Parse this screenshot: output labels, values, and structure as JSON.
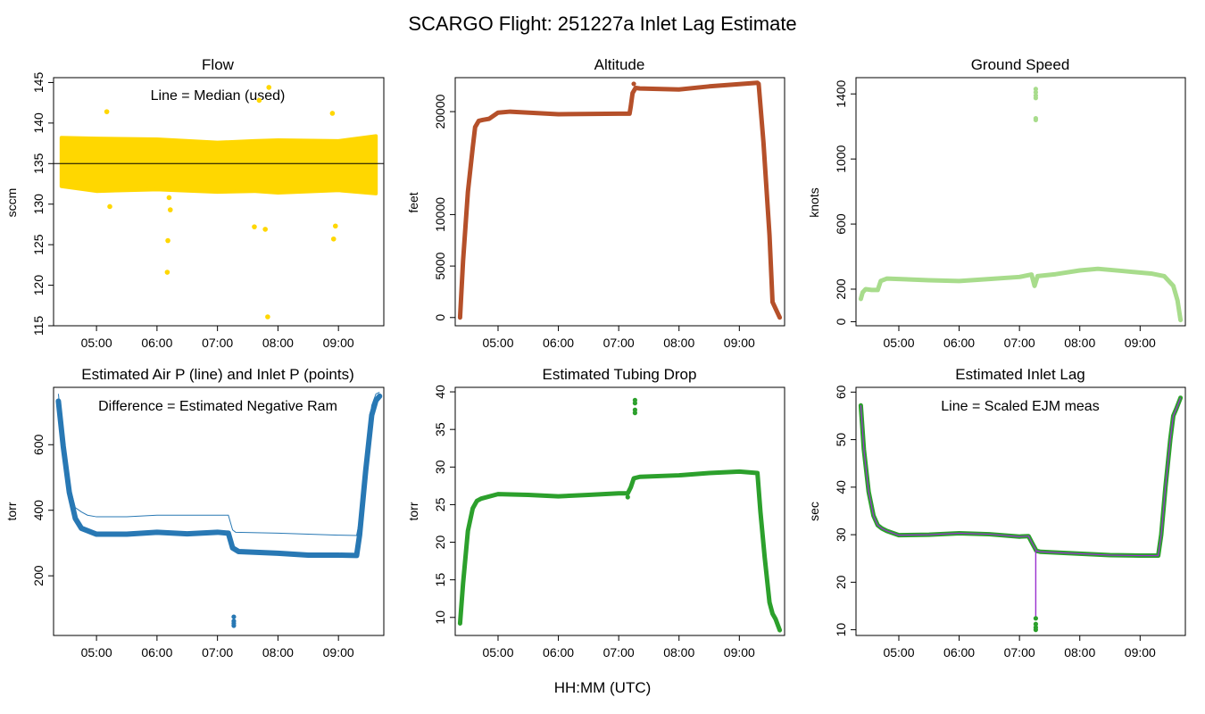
{
  "figure": {
    "title": "SCARGO Flight: 251227a  Inlet Lag Estimate",
    "xlabel": "HH:MM (UTC)"
  },
  "chart_data": [
    {
      "id": "flow",
      "type": "scatter",
      "title": "Flow",
      "ylabel": "sccm",
      "annotation": "Line = Median (used)",
      "color": "#FFD700",
      "xlim": [
        4.29,
        9.75
      ],
      "ylim": [
        115,
        145.6
      ],
      "yticks": [
        115,
        120,
        125,
        130,
        135,
        140,
        145
      ],
      "xticks": [
        5,
        6,
        7,
        8,
        9
      ],
      "xtick_labels": [
        "05:00",
        "06:00",
        "07:00",
        "08:00",
        "09:00"
      ],
      "band": {
        "x": [
          4.42,
          5.0,
          6.0,
          7.0,
          7.6,
          8.0,
          9.0,
          9.62
        ],
        "lower": [
          132.2,
          131.6,
          131.8,
          131.5,
          131.6,
          131.4,
          131.7,
          131.3
        ],
        "upper": [
          138.2,
          138.1,
          138.0,
          137.6,
          137.8,
          137.9,
          137.8,
          138.4
        ]
      },
      "hline": {
        "y": 135.0,
        "color": "#000000"
      },
      "outliers": [
        [
          5.17,
          141.4
        ],
        [
          6.2,
          130.8
        ],
        [
          6.22,
          129.3
        ],
        [
          6.18,
          125.5
        ],
        [
          6.17,
          121.6
        ],
        [
          7.69,
          142.8
        ],
        [
          7.85,
          144.4
        ],
        [
          7.83,
          116.1
        ],
        [
          7.61,
          127.2
        ],
        [
          7.79,
          126.9
        ],
        [
          8.9,
          141.2
        ],
        [
          8.95,
          127.3
        ],
        [
          8.92,
          125.7
        ],
        [
          5.22,
          129.7
        ]
      ]
    },
    {
      "id": "altitude",
      "type": "line",
      "title": "Altitude",
      "ylabel": "feet",
      "color": "#B5502A",
      "xlim": [
        4.29,
        9.75
      ],
      "ylim": [
        -800,
        23300
      ],
      "yticks": [
        0,
        5000,
        10000,
        20000
      ],
      "xticks": [
        5,
        6,
        7,
        8,
        9
      ],
      "xtick_labels": [
        "05:00",
        "06:00",
        "07:00",
        "08:00",
        "09:00"
      ],
      "x": [
        4.37,
        4.42,
        4.5,
        4.58,
        4.62,
        4.68,
        4.75,
        4.85,
        5.0,
        5.2,
        6.0,
        7.0,
        7.18,
        7.2,
        7.23,
        7.28,
        7.35,
        8.0,
        8.5,
        9.3,
        9.32,
        9.4,
        9.5,
        9.55,
        9.63,
        9.67
      ],
      "values": [
        0,
        5500,
        12200,
        16500,
        18500,
        19100,
        19200,
        19300,
        19900,
        20000,
        19750,
        19800,
        19800,
        20500,
        21800,
        22300,
        22250,
        22150,
        22450,
        22800,
        22700,
        17000,
        8000,
        1500,
        500,
        0
      ],
      "points": [
        [
          7.25,
          22700
        ]
      ]
    },
    {
      "id": "groundspeed",
      "type": "line",
      "title": "Ground Speed",
      "ylabel": "knots",
      "color": "#A8DC8C",
      "xlim": [
        4.29,
        9.75
      ],
      "ylim": [
        -25,
        1500
      ],
      "yticks": [
        0,
        200,
        600,
        1000,
        1400
      ],
      "xticks": [
        5,
        6,
        7,
        8,
        9
      ],
      "xtick_labels": [
        "05:00",
        "06:00",
        "07:00",
        "08:00",
        "09:00"
      ],
      "x": [
        4.37,
        4.4,
        4.45,
        4.55,
        4.65,
        4.7,
        4.8,
        5.0,
        5.5,
        6.0,
        6.5,
        7.0,
        7.2,
        7.25,
        7.3,
        7.6,
        8.0,
        8.3,
        8.7,
        9.2,
        9.4,
        9.55,
        9.62,
        9.67
      ],
      "values": [
        140,
        180,
        200,
        195,
        195,
        250,
        265,
        262,
        255,
        250,
        262,
        275,
        290,
        220,
        280,
        292,
        315,
        325,
        312,
        295,
        280,
        220,
        130,
        10
      ],
      "points": [
        [
          7.27,
          1430
        ],
        [
          7.27,
          1410
        ],
        [
          7.27,
          1390
        ],
        [
          7.27,
          1375
        ],
        [
          7.27,
          1250
        ],
        [
          7.27,
          1240
        ]
      ]
    },
    {
      "id": "pressure",
      "type": "line",
      "title": "Estimated Air P (line) and Inlet P (points)",
      "ylabel": "torr",
      "annotation": "Difference = Estimated Negative Ram",
      "color": "#2878B4",
      "xlim": [
        4.29,
        9.75
      ],
      "ylim": [
        18,
        775
      ],
      "yticks": [
        200,
        400,
        600
      ],
      "xticks": [
        5,
        6,
        7,
        8,
        9
      ],
      "xtick_labels": [
        "05:00",
        "06:00",
        "07:00",
        "08:00",
        "09:00"
      ],
      "series": [
        {
          "name": "Inlet P (points)",
          "x": [
            4.37,
            4.45,
            4.55,
            4.65,
            4.75,
            5.0,
            5.5,
            6.0,
            6.5,
            7.0,
            7.18,
            7.25,
            7.35,
            8.0,
            8.5,
            9.0,
            9.3,
            9.35,
            9.45,
            9.55,
            9.62,
            9.68
          ],
          "values": [
            733,
            595,
            455,
            375,
            345,
            327,
            327,
            333,
            328,
            333,
            330,
            285,
            274,
            269,
            263,
            263,
            262,
            325,
            520,
            690,
            735,
            748
          ]
        },
        {
          "name": "Air P (line)",
          "x": [
            4.37,
            4.45,
            4.55,
            4.65,
            4.75,
            4.85,
            5.0,
            5.5,
            6.0,
            7.0,
            7.18,
            7.25,
            7.3,
            8.0,
            9.0,
            9.3,
            9.35,
            9.45,
            9.55,
            9.62,
            9.68
          ],
          "values": [
            755,
            610,
            480,
            408,
            395,
            385,
            380,
            380,
            385,
            385,
            385,
            340,
            333,
            330,
            324,
            323,
            370,
            560,
            720,
            755,
            760
          ]
        }
      ],
      "points": [
        [
          7.27,
          75
        ],
        [
          7.27,
          62
        ],
        [
          7.27,
          55
        ],
        [
          7.27,
          48
        ]
      ]
    },
    {
      "id": "tubing",
      "type": "line",
      "title": "Estimated Tubing Drop",
      "ylabel": "torr",
      "color": "#2CA02C",
      "xlim": [
        4.29,
        9.75
      ],
      "ylim": [
        7.6,
        40.6
      ],
      "yticks": [
        10,
        15,
        20,
        25,
        30,
        35,
        40
      ],
      "xticks": [
        5,
        6,
        7,
        8,
        9
      ],
      "xtick_labels": [
        "05:00",
        "06:00",
        "07:00",
        "08:00",
        "09:00"
      ],
      "x": [
        4.37,
        4.42,
        4.5,
        4.58,
        4.65,
        4.72,
        5.0,
        5.5,
        6.0,
        6.5,
        7.0,
        7.15,
        7.2,
        7.25,
        7.35,
        8.0,
        8.5,
        9.0,
        9.3,
        9.35,
        9.42,
        9.5,
        9.55,
        9.6,
        9.67
      ],
      "values": [
        9.2,
        14.5,
        21.5,
        24.5,
        25.5,
        25.8,
        26.4,
        26.3,
        26.1,
        26.3,
        26.5,
        26.5,
        27.3,
        28.5,
        28.7,
        28.9,
        29.2,
        29.4,
        29.2,
        24.0,
        18.0,
        12.0,
        10.5,
        9.8,
        8.3
      ],
      "points": [
        [
          7.27,
          38.9
        ],
        [
          7.27,
          38.5
        ],
        [
          7.27,
          37.6
        ],
        [
          7.27,
          37.2
        ],
        [
          7.15,
          26.0
        ]
      ]
    },
    {
      "id": "lag",
      "type": "line",
      "title": "Estimated Inlet Lag",
      "ylabel": "sec",
      "annotation": "Line = Scaled EJM meas",
      "color": "#2CA02C",
      "line_color": "#9B30D0",
      "xlim": [
        4.29,
        9.75
      ],
      "ylim": [
        8.8,
        61
      ],
      "yticks": [
        10,
        20,
        30,
        40,
        50,
        60
      ],
      "xticks": [
        5,
        6,
        7,
        8,
        9
      ],
      "xtick_labels": [
        "05:00",
        "06:00",
        "07:00",
        "08:00",
        "09:00"
      ],
      "x": [
        4.37,
        4.42,
        4.5,
        4.58,
        4.65,
        4.72,
        4.8,
        5.0,
        5.5,
        6.0,
        6.5,
        7.0,
        7.15,
        7.22,
        7.28,
        7.35,
        8.0,
        8.5,
        9.0,
        9.3,
        9.35,
        9.42,
        9.5,
        9.55,
        9.6,
        9.67
      ],
      "values": [
        57.2,
        48.0,
        39.0,
        34.0,
        32.0,
        31.3,
        30.8,
        29.9,
        30.0,
        30.3,
        30.1,
        29.6,
        29.7,
        28.0,
        26.6,
        26.4,
        26.0,
        25.7,
        25.6,
        25.6,
        30.0,
        40.0,
        50.0,
        55.0,
        56.5,
        58.8
      ],
      "points": [
        [
          7.27,
          12.4
        ],
        [
          7.27,
          11.2
        ],
        [
          7.27,
          10.5
        ],
        [
          7.27,
          10.0
        ]
      ],
      "spike": {
        "x": 7.27,
        "from": 26.6,
        "to": 12.6
      }
    }
  ]
}
